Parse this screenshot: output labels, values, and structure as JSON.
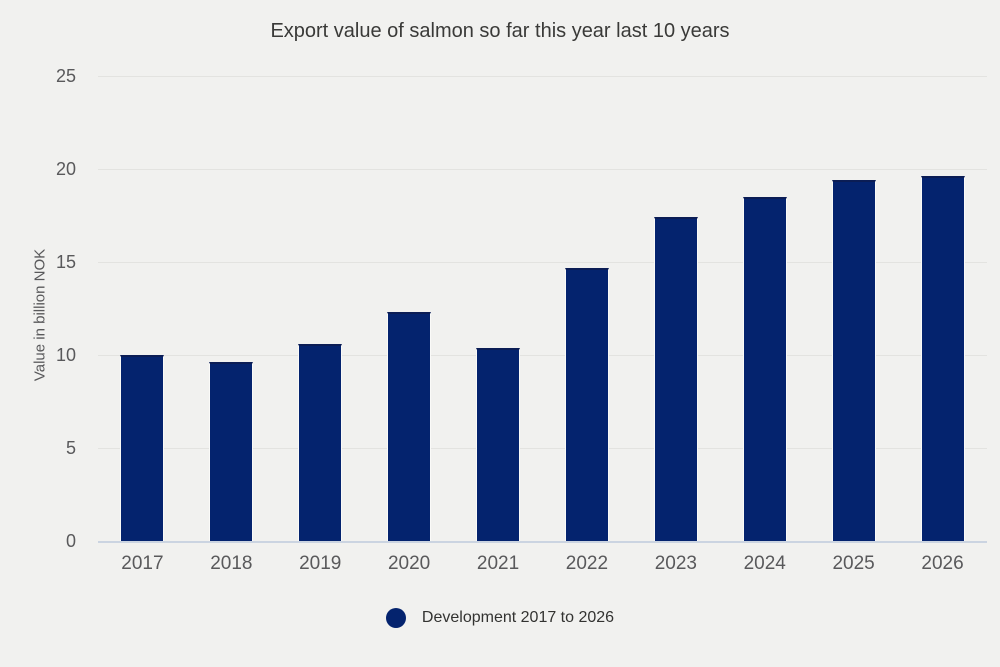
{
  "title": "Export value of salmon so far this year last 10 years",
  "legend": {
    "label": "Development 2017 to 2026"
  },
  "y_axis": {
    "title": "Value in billion NOK",
    "tick_labels": [
      "0",
      "5",
      "10",
      "15",
      "20",
      "25"
    ]
  },
  "x_axis": {
    "tick_labels": [
      "2017",
      "2018",
      "2019",
      "2020",
      "2021",
      "2022",
      "2023",
      "2024",
      "2025",
      "2026"
    ]
  },
  "colors": {
    "background": "#f1f1ef",
    "bar": "#04236e",
    "bar_top_edge": "#0b1d55",
    "bar_side_edge": "#fafaf8",
    "gridline": "#e3e3e0",
    "baseline": "#cbd4e1",
    "title_text": "#3a3a38",
    "axis_text": "#59595b",
    "legend_text": "#333331"
  },
  "chart_data": {
    "type": "bar",
    "title": "Export value of salmon so far this year last 10 years",
    "categories": [
      "2017",
      "2018",
      "2019",
      "2020",
      "2021",
      "2022",
      "2023",
      "2024",
      "2025",
      "2026"
    ],
    "values": [
      10.0,
      9.6,
      10.6,
      12.3,
      10.4,
      14.7,
      17.4,
      18.5,
      19.4,
      19.6
    ],
    "series_name": "Development 2017 to 2026",
    "xlabel": "",
    "ylabel": "Value in billion NOK",
    "ylim": [
      0,
      25
    ],
    "yticks": [
      0,
      5,
      10,
      15,
      20,
      25
    ],
    "grid": true,
    "legend_position": "bottom",
    "bar_color": "#04236e"
  }
}
